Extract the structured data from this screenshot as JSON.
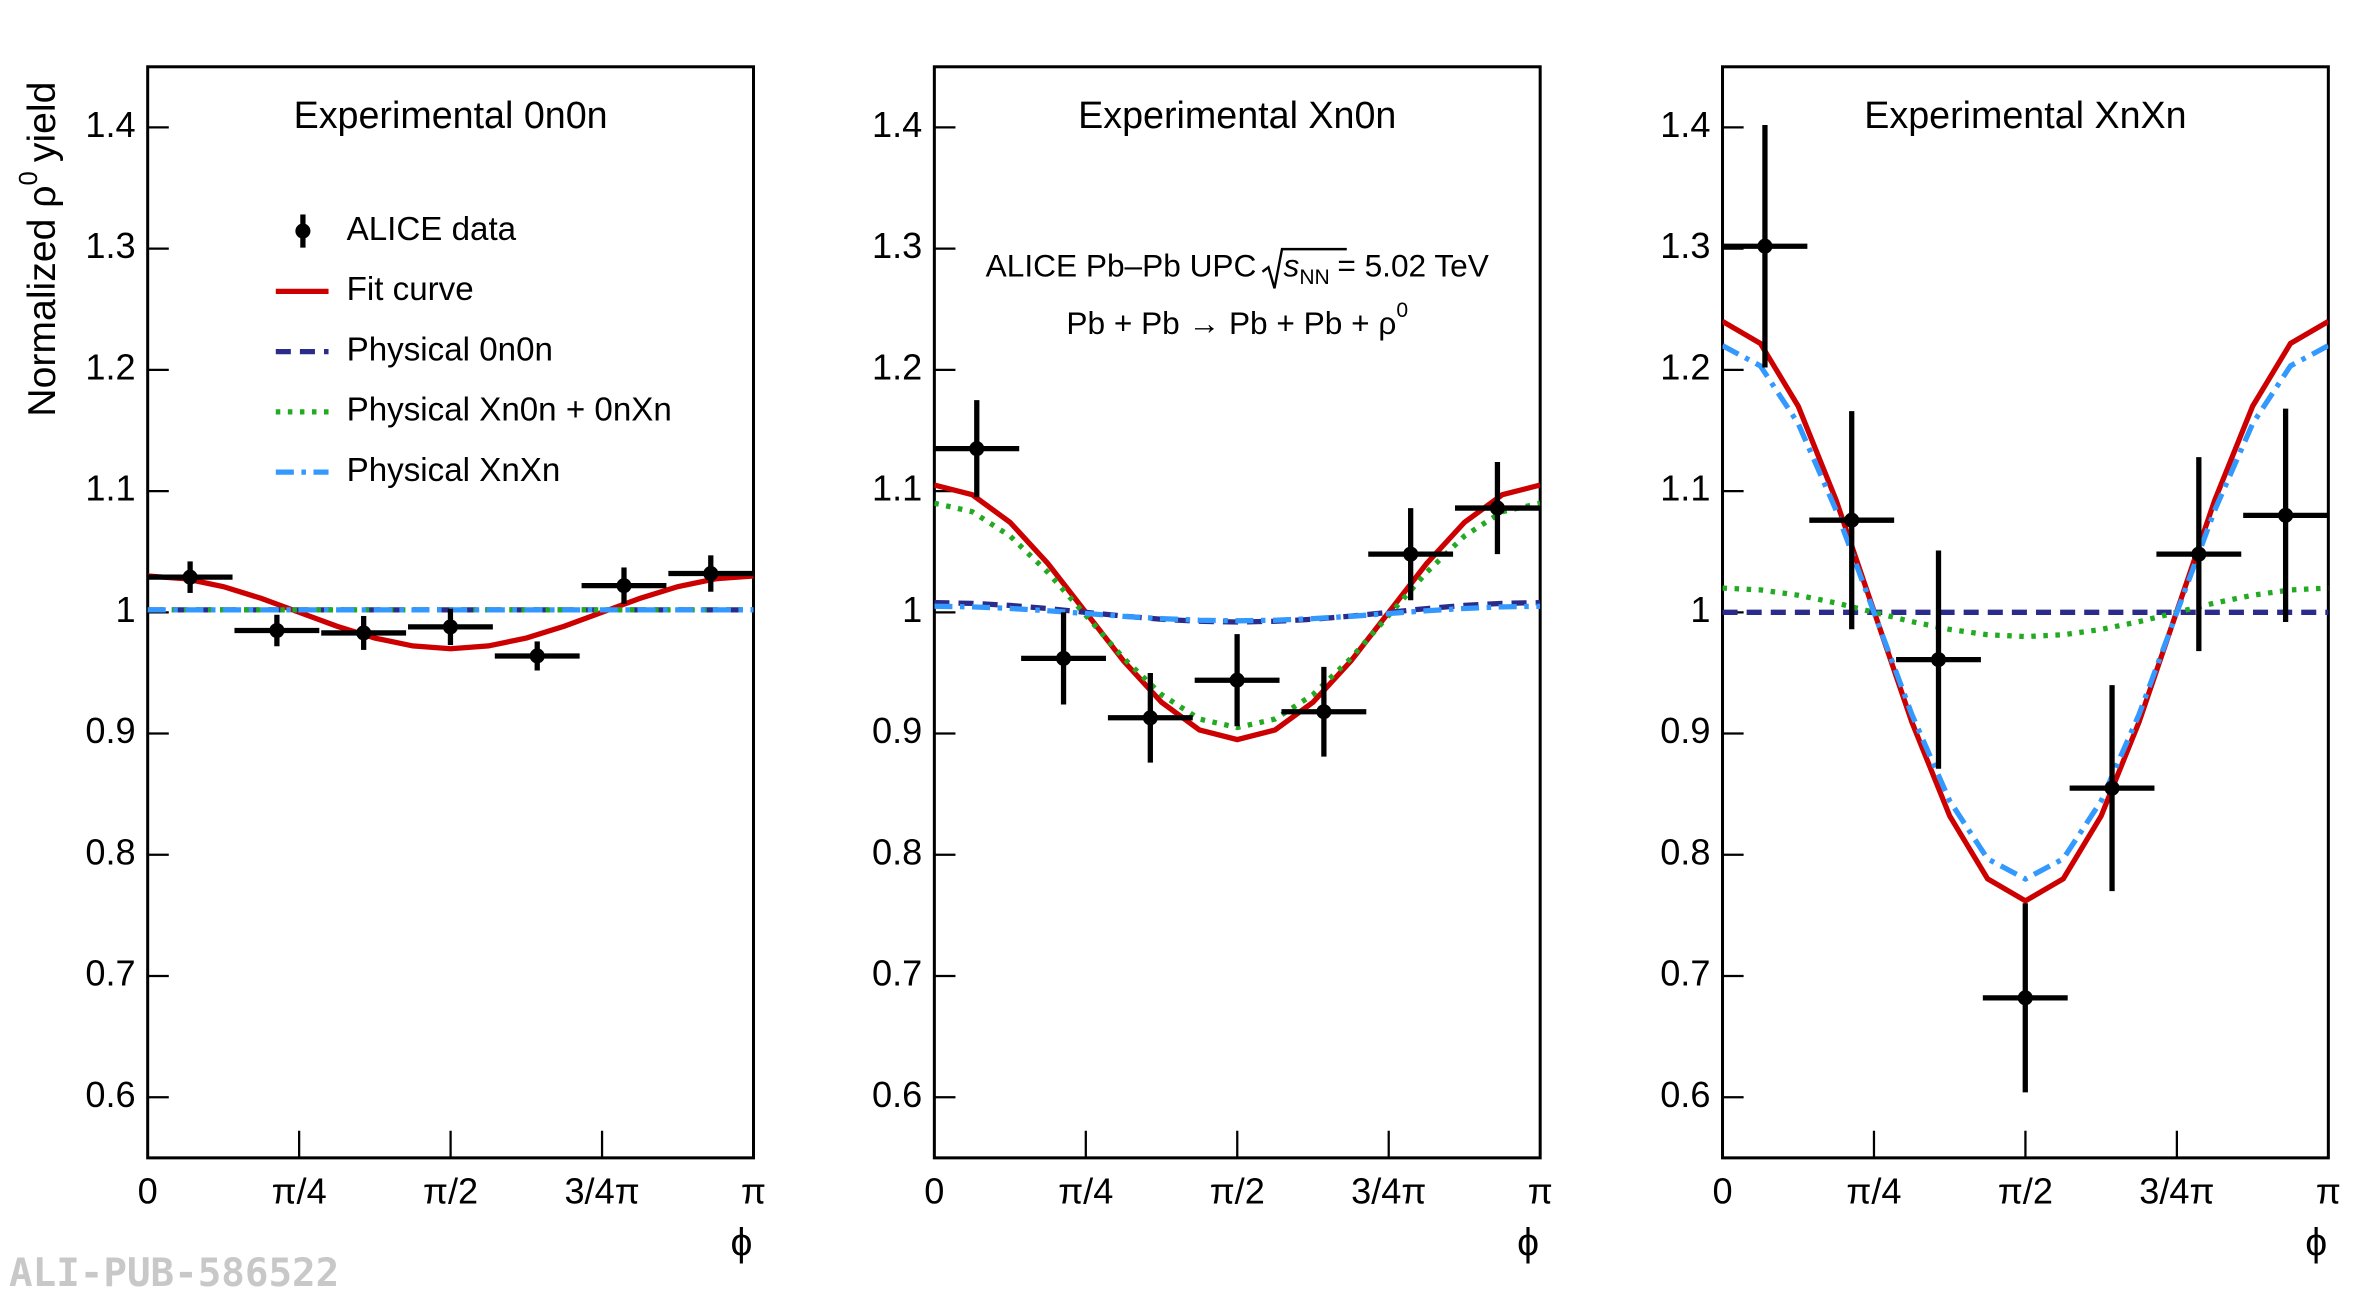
{
  "watermark": "ALI-PUB-586522",
  "chart_data": [
    {
      "type": "errorbar",
      "title": "Experimental 0n0n",
      "xlabel": "ϕ",
      "ylabel": {
        "text": "Normalized ρ",
        "sup": "0",
        "after": "yield"
      },
      "xlim": [
        0,
        3.14159265
      ],
      "ylim": [
        0.55,
        1.45
      ],
      "xticks": [
        0,
        {
          "value": 0.78539816,
          "label": "π/4"
        },
        {
          "value": 1.57079633,
          "label": "π/2"
        },
        {
          "value": 2.35619449,
          "label": "3/4π"
        },
        {
          "value": 3.14159265,
          "label": "π"
        }
      ],
      "yticks": [
        0.6,
        0.7,
        0.8,
        0.9,
        1,
        1.1,
        1.2,
        1.3,
        1.4
      ],
      "data": {
        "name": "ALICE data",
        "color": "#000000",
        "x": [
          0.22,
          0.67,
          1.12,
          1.57,
          2.02,
          2.47,
          2.92
        ],
        "xerr": [
          0.22,
          0.22,
          0.22,
          0.22,
          0.22,
          0.22,
          0.22
        ],
        "values": [
          1.029,
          0.985,
          0.983,
          0.988,
          0.964,
          1.022,
          1.032
        ],
        "yerr": [
          0.013,
          0.013,
          0.014,
          0.015,
          0.012,
          0.015,
          0.015
        ]
      },
      "curve_x": [
        0,
        0.19635,
        0.3927,
        0.58905,
        0.7854,
        0.98175,
        1.1781,
        1.37445,
        1.5708,
        1.76715,
        1.9635,
        2.15985,
        2.3562,
        2.55255,
        2.7489,
        2.94524,
        3.14159
      ],
      "series": [
        {
          "name": "Fit curve",
          "color": "#cc0000",
          "dash": "solid",
          "values": [
            1.03,
            1.0277,
            1.0212,
            1.0115,
            1,
            0.9885,
            0.9788,
            0.9723,
            0.97,
            0.9723,
            0.9788,
            0.9885,
            1,
            1.0115,
            1.0212,
            1.0277,
            1.03
          ]
        },
        {
          "name": "Physical 0n0n",
          "color": "#2b2b8c",
          "dash": "dashed",
          "values": [
            1.002,
            1.002,
            1.002,
            1.002,
            1.002,
            1.002,
            1.002,
            1.002,
            1.002,
            1.002,
            1.002,
            1.002,
            1.002,
            1.002,
            1.002,
            1.002,
            1.002
          ]
        },
        {
          "name": "Physical Xn0n + 0nXn",
          "color": "#22aa22",
          "dash": "dotted",
          "values": [
            1.002,
            1.002,
            1.002,
            1.002,
            1.002,
            1.002,
            1.002,
            1.002,
            1.002,
            1.002,
            1.002,
            1.002,
            1.002,
            1.002,
            1.002,
            1.002,
            1.002
          ]
        },
        {
          "name": "Physical XnXn",
          "color": "#3399ff",
          "dash": "dashdot",
          "values": [
            1.002,
            1.002,
            1.002,
            1.002,
            1.002,
            1.002,
            1.002,
            1.002,
            1.002,
            1.002,
            1.002,
            1.002,
            1.002,
            1.002,
            1.002,
            1.002,
            1.002
          ]
        }
      ]
    },
    {
      "type": "errorbar",
      "title": "Experimental Xn0n",
      "xlabel": "ϕ",
      "annotation": {
        "line1": {
          "before": "ALICE Pb–Pb UPC",
          "sqrt_base": "s",
          "sqrt_sub": "NN",
          "after": "= 5.02 TeV"
        },
        "line2": {
          "text": "Pb + Pb → Pb + Pb + ρ",
          "sup": "0"
        }
      },
      "xlim": [
        0,
        3.14159265
      ],
      "ylim": [
        0.55,
        1.45
      ],
      "xticks": [
        0,
        {
          "value": 0.78539816,
          "label": "π/4"
        },
        {
          "value": 1.57079633,
          "label": "π/2"
        },
        {
          "value": 2.35619449,
          "label": "3/4π"
        },
        {
          "value": 3.14159265,
          "label": "π"
        }
      ],
      "yticks": [
        0.6,
        0.7,
        0.8,
        0.9,
        1,
        1.1,
        1.2,
        1.3,
        1.4
      ],
      "data": {
        "color": "#000000",
        "x": [
          0.22,
          0.67,
          1.12,
          1.57,
          2.02,
          2.47,
          2.92
        ],
        "xerr": [
          0.22,
          0.22,
          0.22,
          0.22,
          0.22,
          0.22,
          0.22
        ],
        "values": [
          1.135,
          0.962,
          0.913,
          0.944,
          0.918,
          1.048,
          1.086
        ],
        "yerr": [
          0.04,
          0.038,
          0.037,
          0.038,
          0.037,
          0.038,
          0.038
        ]
      },
      "curve_x": [
        0,
        0.19635,
        0.3927,
        0.58905,
        0.7854,
        0.98175,
        1.1781,
        1.37445,
        1.5708,
        1.76715,
        1.9635,
        2.15985,
        2.3562,
        2.55255,
        2.7489,
        2.94524,
        3.14159
      ],
      "series": [
        {
          "color": "#cc0000",
          "dash": "solid",
          "values": [
            1.105,
            1.097,
            1.0742,
            1.0402,
            1,
            0.9598,
            0.9258,
            0.903,
            0.895,
            0.903,
            0.9258,
            0.9598,
            1,
            1.0402,
            1.0742,
            1.097,
            1.105
          ]
        },
        {
          "color": "#2b2b8c",
          "dash": "dashed",
          "values": [
            1.008,
            1.0074,
            1.0057,
            1.0031,
            1,
            0.9969,
            0.9943,
            0.9926,
            0.992,
            0.9926,
            0.9943,
            0.9969,
            1,
            1.0031,
            1.0057,
            1.0074,
            1.008
          ]
        },
        {
          "color": "#22aa22",
          "dash": "dotted",
          "values": [
            1.09,
            1.083,
            1.0629,
            1.0329,
            0.9975,
            0.9621,
            0.9321,
            0.912,
            0.905,
            0.912,
            0.9321,
            0.9621,
            0.9975,
            1.0329,
            1.0629,
            1.083,
            1.09
          ]
        },
        {
          "color": "#3399ff",
          "dash": "dashdot",
          "values": [
            1.005,
            1.0045,
            1.0032,
            1.0013,
            0.999,
            0.9967,
            0.9948,
            0.9935,
            0.993,
            0.9935,
            0.9948,
            0.9967,
            0.999,
            1.0013,
            1.0032,
            1.0045,
            1.005
          ]
        }
      ]
    },
    {
      "type": "errorbar",
      "title": "Experimental XnXn",
      "xlabel": "ϕ",
      "xlim": [
        0,
        3.14159265
      ],
      "ylim": [
        0.55,
        1.45
      ],
      "xticks": [
        0,
        {
          "value": 0.78539816,
          "label": "π/4"
        },
        {
          "value": 1.57079633,
          "label": "π/2"
        },
        {
          "value": 2.35619449,
          "label": "3/4π"
        },
        {
          "value": 3.14159265,
          "label": "π"
        }
      ],
      "yticks": [
        0.6,
        0.7,
        0.8,
        0.9,
        1,
        1.1,
        1.2,
        1.3,
        1.4
      ],
      "data": {
        "color": "#000000",
        "x": [
          0.22,
          0.67,
          1.12,
          1.57,
          2.02,
          2.47,
          2.92
        ],
        "xerr": [
          0.22,
          0.22,
          0.22,
          0.22,
          0.22,
          0.22,
          0.22
        ],
        "values": [
          1.302,
          1.076,
          0.961,
          0.682,
          0.855,
          1.048,
          1.08
        ],
        "yerr": [
          0.1,
          0.09,
          0.09,
          0.078,
          0.085,
          0.08,
          0.088
        ]
      },
      "curve_x": [
        0,
        0.19635,
        0.3927,
        0.58905,
        0.7854,
        0.98175,
        1.1781,
        1.37445,
        1.5708,
        1.76715,
        1.9635,
        2.15985,
        2.3562,
        2.55255,
        2.7489,
        2.94524,
        3.14159
      ],
      "series": [
        {
          "color": "#cc0000",
          "dash": "solid",
          "values": [
            1.24,
            1.2218,
            1.17,
            1.0925,
            1.001,
            0.9095,
            0.832,
            0.7802,
            0.762,
            0.7802,
            0.832,
            0.9095,
            1.001,
            1.0925,
            1.17,
            1.2218,
            1.24
          ]
        },
        {
          "color": "#2b2b8c",
          "dash": "dashed",
          "values": [
            1,
            1,
            1,
            1,
            1,
            1,
            1,
            1,
            1,
            1,
            1,
            1,
            1,
            1,
            1,
            1,
            1
          ]
        },
        {
          "color": "#22aa22",
          "dash": "dotted",
          "values": [
            1.02,
            1.0185,
            1.0141,
            1.0077,
            1,
            0.9923,
            0.9859,
            0.9815,
            0.98,
            0.9815,
            0.9859,
            0.9923,
            1,
            1.0077,
            1.0141,
            1.0185,
            1.02
          ]
        },
        {
          "color": "#3399ff",
          "dash": "dashdot",
          "values": [
            1.22,
            1.2033,
            1.1556,
            1.0842,
            1,
            0.9158,
            0.8444,
            0.7967,
            0.78,
            0.7967,
            0.8444,
            0.9158,
            1,
            1.0842,
            1.1556,
            1.2033,
            1.22
          ]
        }
      ]
    }
  ]
}
